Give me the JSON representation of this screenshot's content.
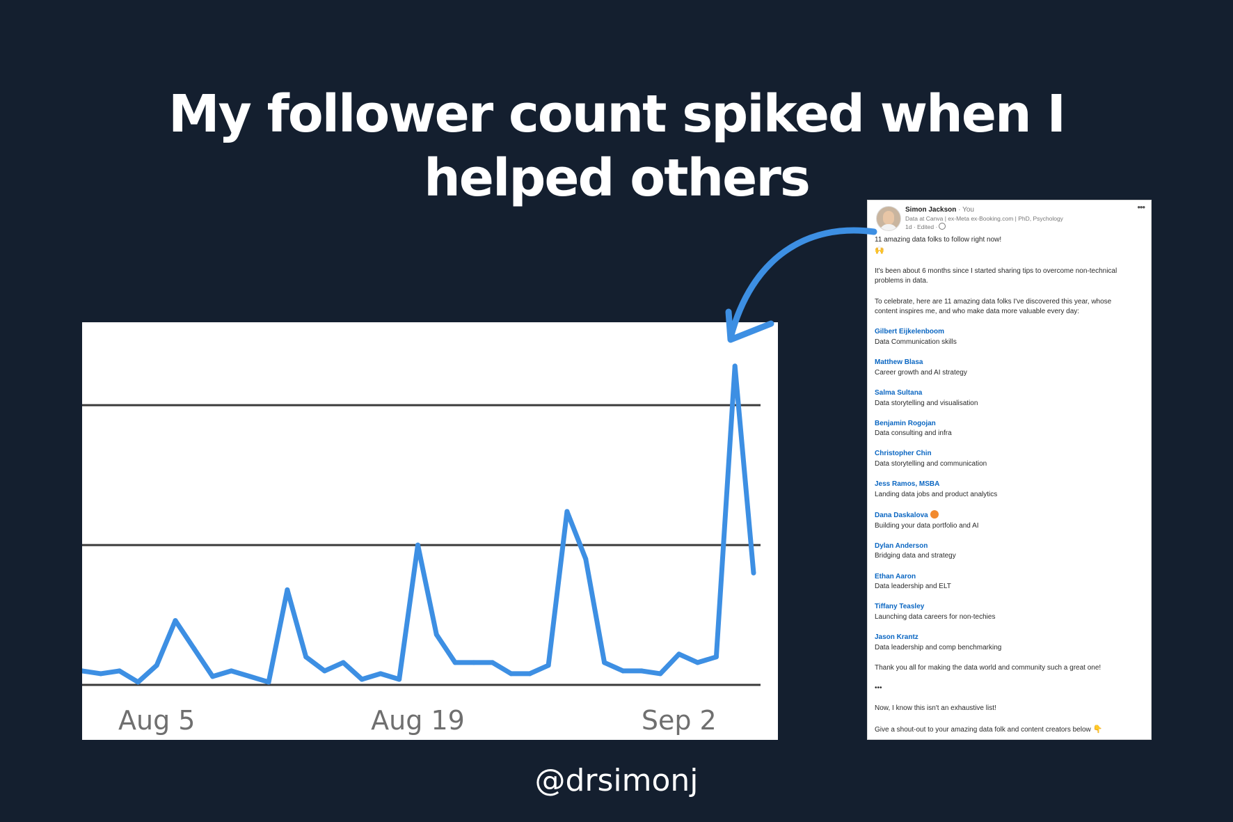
{
  "headline": {
    "line1": "My follower count spiked when I",
    "line2": "helped others"
  },
  "handle": "@drsimonj",
  "colors": {
    "background": "#141f2f",
    "line": "#3d8fe3",
    "link": "#0a66c2",
    "arrow": "#3d8fe3"
  },
  "chart_data": {
    "type": "line",
    "title": "",
    "xlabel": "",
    "ylabel": "",
    "x_tick_labels": [
      "Aug 5",
      "Aug 19",
      "Sep 2"
    ],
    "x_tick_day_index": [
      4,
      18,
      32
    ],
    "ylim": [
      0,
      110
    ],
    "gridlines": [
      0,
      50,
      100
    ],
    "grid": true,
    "series": [
      {
        "name": "Followers",
        "values": [
          5,
          4,
          5,
          1,
          7,
          23,
          13,
          3,
          5,
          3,
          1,
          34,
          10,
          5,
          8,
          2,
          4,
          2,
          50,
          18,
          8,
          8,
          8,
          4,
          4,
          7,
          62,
          45,
          8,
          5,
          5,
          4,
          11,
          8,
          10,
          114,
          40
        ]
      }
    ]
  },
  "post": {
    "author": "Simon Jackson",
    "you_label": "· You",
    "title": "Data at Canva | ex-Meta ex-Booking.com | PhD, Psychology",
    "meta": "1d · Edited ·",
    "more_icon": "•••",
    "intro": "11 amazing data folks to follow right now!",
    "intro_emoji": "🙌",
    "para1_line1": "It's been about 6 months since I started sharing tips to overcome non-technical",
    "para1_line2": "problems in data.",
    "para2_line1": "To celebrate, here are 11 amazing data folks I've discovered this year, whose",
    "para2_line2": "content inspires me, and who make data more valuable every day:",
    "people": [
      {
        "name": "Gilbert Eijkelenboom",
        "topic": "Data Communication skills"
      },
      {
        "name": "Matthew Blasa",
        "topic": "Career growth and AI strategy"
      },
      {
        "name": "Salma Sultana",
        "topic": "Data storytelling and visualisation"
      },
      {
        "name": "Benjamin Rogojan",
        "topic": "Data consulting and infra"
      },
      {
        "name": "Christopher Chin",
        "topic": "Data storytelling and communication"
      },
      {
        "name": "Jess Ramos, MSBA",
        "topic": "Landing data jobs and product analytics"
      },
      {
        "name": "Dana Daskalova",
        "topic": "Building your data portfolio and AI"
      },
      {
        "name": "Dylan Anderson",
        "topic": "Bridging data and strategy"
      },
      {
        "name": "Ethan Aaron",
        "topic": "Data leadership and ELT"
      },
      {
        "name": "Tiffany Teasley",
        "topic": "Launching data careers for non-techies"
      },
      {
        "name": "Jason Krantz",
        "topic": "Data leadership and comp benchmarking"
      }
    ],
    "thanks": "Thank you all for making the data world and community such a great one!",
    "separator": "•••",
    "outro1": "Now, I know this isn't an exhaustive list!",
    "outro2": "Give a shout-out to your amazing data folk and content creators below",
    "outro_emoji": "👇"
  }
}
